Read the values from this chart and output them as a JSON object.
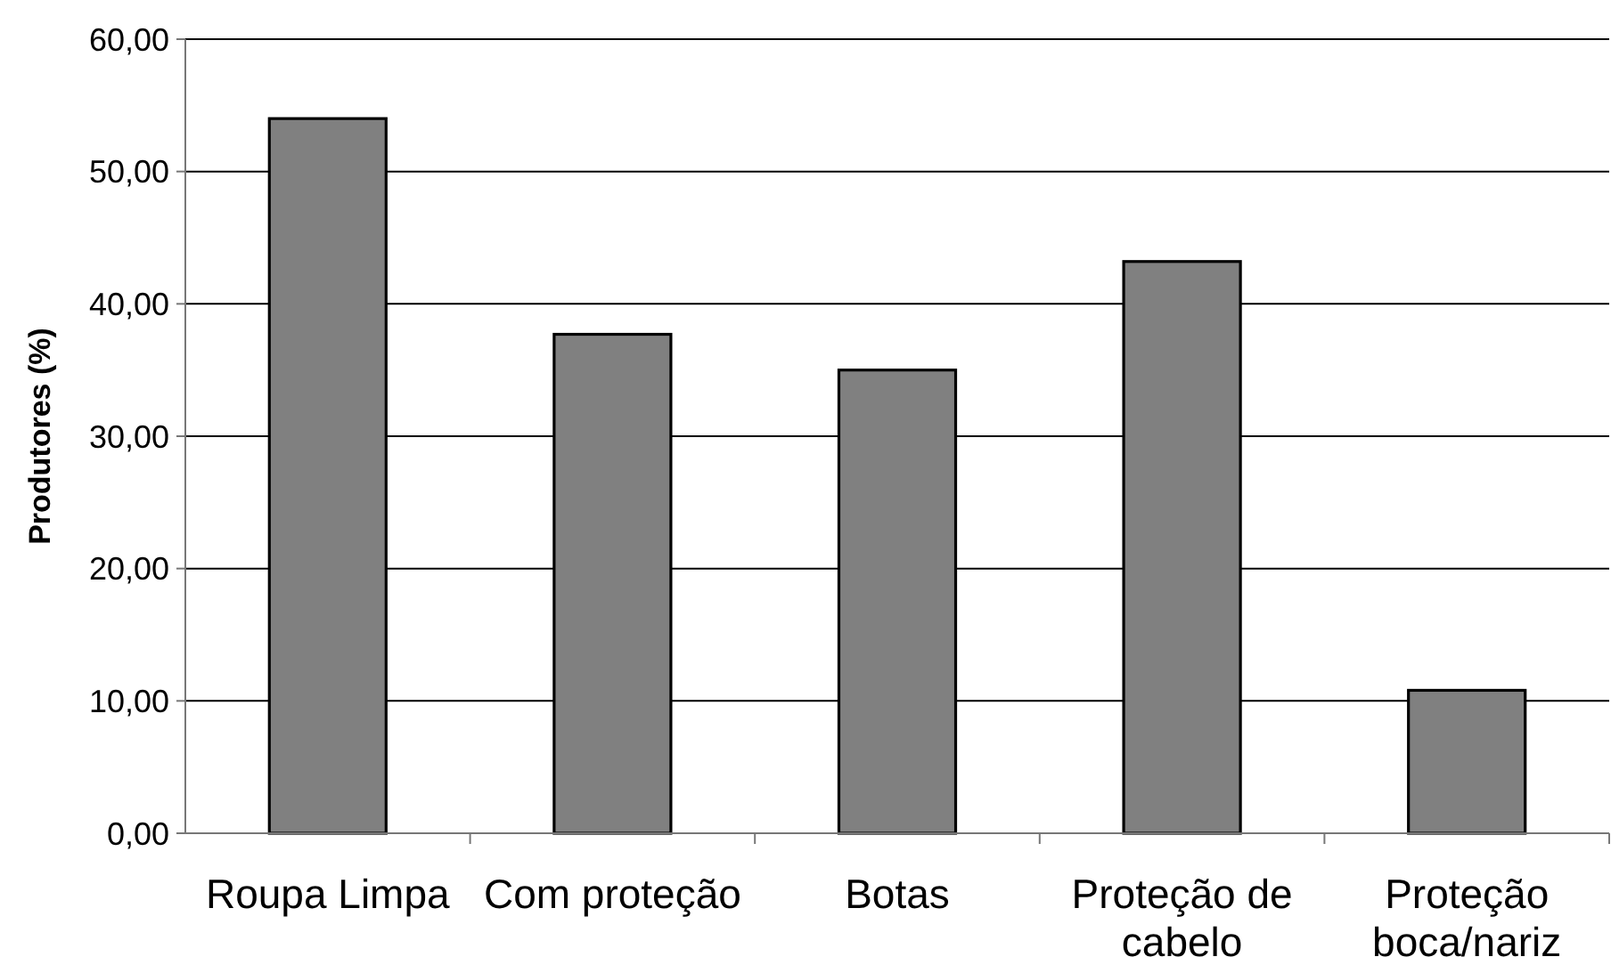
{
  "chart_data": {
    "type": "bar",
    "ylabel": "Produtores (%)",
    "categories": [
      "Roupa Limpa",
      "Com proteção",
      "Botas",
      "Proteção de cabelo",
      "Proteção boca/nariz"
    ],
    "values": [
      54.0,
      37.7,
      35.0,
      43.2,
      10.8
    ],
    "color": "#808080",
    "ylim": [
      0,
      60
    ],
    "yticks": [
      {
        "value": 0,
        "label": "0,00"
      },
      {
        "value": 10,
        "label": "10,00"
      },
      {
        "value": 20,
        "label": "20,00"
      },
      {
        "value": 30,
        "label": "30,00"
      },
      {
        "value": 40,
        "label": "40,00"
      },
      {
        "value": 50,
        "label": "50,00"
      },
      {
        "value": 60,
        "label": "60,00"
      }
    ],
    "grid": "y"
  }
}
